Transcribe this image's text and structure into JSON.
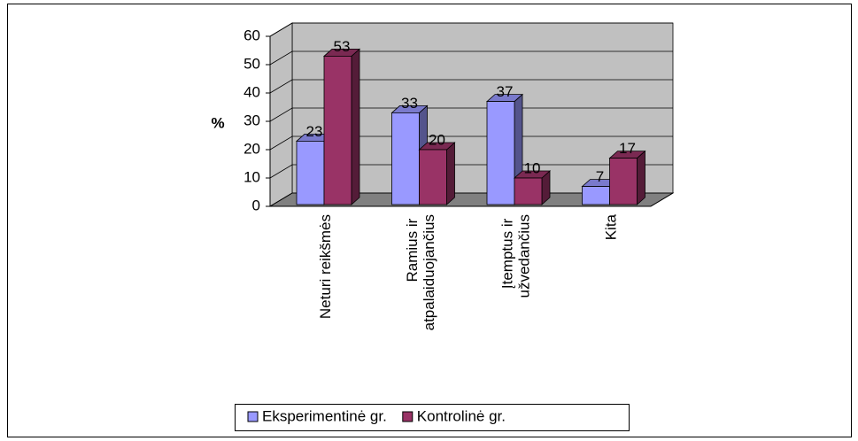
{
  "chart_data": {
    "type": "bar3d",
    "y_label": "%",
    "categories": [
      "Neturi reikšmės",
      "Ramius ir atpalaiduojančius",
      "Įtemptus ir užvedančius",
      "Kita"
    ],
    "series": [
      {
        "name": "Eksperimentinė gr.",
        "color": "#9999ff",
        "values": [
          23,
          33,
          37,
          7
        ]
      },
      {
        "name": "Kontrolinė gr.",
        "color": "#993366",
        "values": [
          53,
          20,
          10,
          17
        ]
      }
    ],
    "ylim": [
      0,
      60
    ],
    "yticks": [
      0,
      10,
      20,
      30,
      40,
      50,
      60
    ],
    "grid": true,
    "legend": "bottom"
  }
}
